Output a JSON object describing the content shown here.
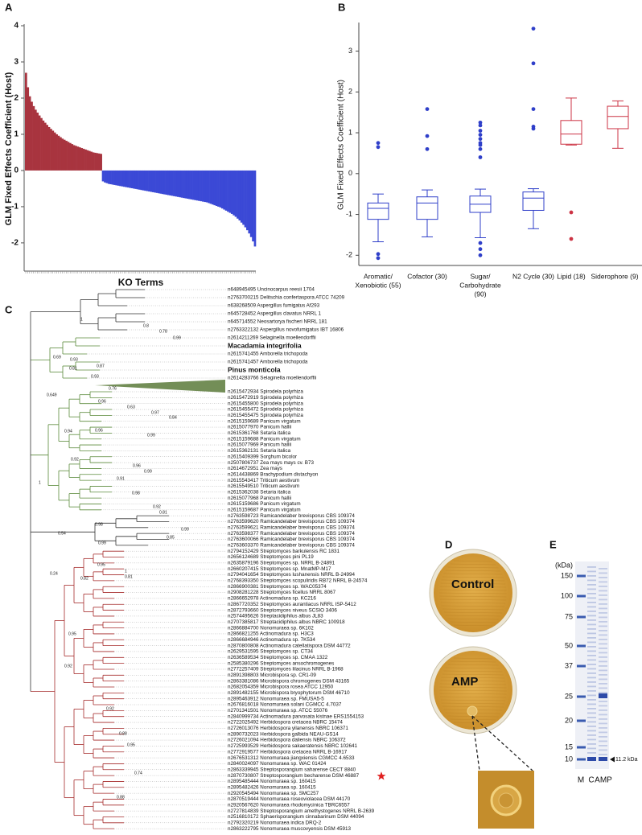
{
  "panel_labels": [
    "A",
    "B",
    "C",
    "D",
    "E"
  ],
  "chart_data": [
    {
      "type": "bar",
      "ylabel": "GLM Fixed Effects Coefficient (Host)",
      "xlabel": "KO Terms",
      "ylim": [
        -2.78,
        4
      ],
      "yticks": [
        -2,
        -1,
        0,
        1,
        2,
        3,
        4
      ],
      "positive_color": "#a8343f",
      "negative_color": "#3b49d6",
      "values": [
        2.7,
        2.3,
        2.05,
        1.9,
        1.78,
        1.68,
        1.6,
        1.52,
        1.45,
        1.38,
        1.32,
        1.26,
        1.2,
        1.15,
        1.1,
        1.05,
        1.0,
        0.96,
        0.92,
        0.88,
        0.85,
        0.82,
        0.79,
        0.76,
        0.73,
        0.7,
        0.68,
        0.66,
        0.64,
        0.62,
        0.6,
        0.58,
        0.56,
        0.54,
        0.52,
        0.5,
        0.49,
        0.48,
        0.47,
        0.46,
        -0.3,
        -0.33,
        -0.35,
        -0.37,
        -0.38,
        -0.39,
        -0.4,
        -0.41,
        -0.42,
        -0.43,
        -0.44,
        -0.45,
        -0.46,
        -0.47,
        -0.48,
        -0.49,
        -0.5,
        -0.51,
        -0.52,
        -0.53,
        -0.54,
        -0.55,
        -0.56,
        -0.57,
        -0.58,
        -0.59,
        -0.6,
        -0.61,
        -0.62,
        -0.63,
        -0.64,
        -0.65,
        -0.66,
        -0.67,
        -0.68,
        -0.69,
        -0.7,
        -0.71,
        -0.72,
        -0.73,
        -0.74,
        -0.75,
        -0.76,
        -0.77,
        -0.78,
        -0.79,
        -0.8,
        -0.81,
        -0.82,
        -0.83,
        -0.84,
        -0.85,
        -0.86,
        -0.87,
        -0.88,
        -0.9,
        -0.92,
        -0.94,
        -0.96,
        -0.98,
        -1.0,
        -1.02,
        -1.05,
        -1.08,
        -1.11,
        -1.14,
        -1.17,
        -1.2,
        -1.24,
        -1.28,
        -1.33,
        -1.38,
        -1.44,
        -1.5,
        -1.57,
        -1.65,
        -1.74,
        -1.84,
        -1.96,
        -2.1
      ]
    },
    {
      "type": "box",
      "ylabel": "GLM Fixed Effects Coefficient (Host)",
      "ylim": [
        -2.25,
        3.7
      ],
      "yticks": [
        -2,
        -1,
        0,
        1,
        2,
        3
      ],
      "categories": [
        [
          "Aromatic/",
          "Xenobiotic (55)"
        ],
        [
          "Cofactor (30)"
        ],
        [
          "Sugar/",
          "Carbohydrate",
          "(90)"
        ],
        [
          "N2 Cycle (30)"
        ],
        [
          "Lipid (18)"
        ],
        [
          "Siderophore (9)"
        ]
      ],
      "colors": [
        "#2f3fc9",
        "#2f3fc9",
        "#2f3fc9",
        "#2f3fc9",
        "#cc3344",
        "#cc3344"
      ],
      "boxes": [
        {
          "whislo": -1.67,
          "q1": -1.12,
          "med": -0.85,
          "q3": -0.72,
          "whishi": -0.5,
          "fliers": [
            0.75,
            0.65,
            -1.97,
            -2.07
          ]
        },
        {
          "whislo": -1.55,
          "q1": -1.12,
          "med": -0.72,
          "q3": -0.57,
          "whishi": -0.4,
          "fliers": [
            1.58,
            0.92,
            0.6
          ]
        },
        {
          "whislo": -1.57,
          "q1": -0.95,
          "med": -0.75,
          "q3": -0.55,
          "whishi": -0.38,
          "fliers": [
            1.25,
            1.18,
            1.05,
            0.95,
            0.85,
            0.75,
            0.7,
            0.6,
            0.4,
            -1.7,
            -1.85,
            -2.0
          ]
        },
        {
          "whislo": -1.35,
          "q1": -0.9,
          "med": -0.6,
          "q3": -0.45,
          "whishi": -0.37,
          "fliers": [
            3.55,
            2.7,
            1.58,
            1.15,
            1.1
          ]
        },
        {
          "whislo": 0.7,
          "q1": 0.72,
          "med": 0.97,
          "q3": 1.3,
          "whishi": 1.85,
          "fliers": [
            -0.95,
            -1.6
          ]
        },
        {
          "whislo": 0.62,
          "q1": 1.1,
          "med": 1.4,
          "q3": 1.65,
          "whishi": 1.78,
          "fliers": []
        }
      ]
    }
  ],
  "tree": {
    "leaves": [
      "n648945495 Uncinocarpus reesii 1704",
      "n2763700215 Delitschia confertaspora ATCC 74209",
      "n638268509 Aspergillus fumigatus Af293",
      "n645728452 Aspergillus clavatus NRRL 1",
      "n645714552 Neosartorya fischeri NRRL 181",
      "n2763322132 Aspergillus novofumigatus IBT 16806",
      "n2614211269 Selaginella moellendorffii",
      "Macadamia integrifolia",
      "n2615741455 Amborella trichopoda",
      "n2615741457 Amborella trichopoda",
      "Pinus monticola",
      "n2614283766 Selaginella moellendorffii",
      "n2615472934 Spirodela polyrhiza",
      "n2615472919 Spirodela polyrhiza",
      "n2615455800 Spirodela polyrhiza",
      "n2615455472 Spirodela polyrhiza",
      "n2615455475 Spirodela polyrhiza",
      "n2615159689 Panicum virgatum",
      "n2615077970 Panicum hallii",
      "n2615361768 Setaria italica",
      "n2615159688 Panicum virgatum",
      "n2615077969 Panicum hallii",
      "n2615362131 Setaria italica",
      "n2615409399 Sorghum bicolor",
      "n2507806737 Zea mays mays cv. B73",
      "n2614672951 Zea mays",
      "n2614438869 Brachypodium distachyon",
      "n2615543417 Triticum aestivum",
      "n2615549510 Triticum aestivum",
      "n2615362038 Setaria italica",
      "n2615077968 Panicum hallii",
      "n2615159686 Panicum virgatum",
      "n2615159687 Panicum virgatum",
      "n2763598723 Ramicandelaber brevisporus CBS 109374",
      "n2763599620 Ramicandelaber brevisporus CBS 109374",
      "n2763599621 Ramicandelaber brevisporus CBS 109374",
      "n2763598377 Ramicandelaber brevisporus CBS 109374",
      "n2763600066 Ramicandelaber brevisporus CBS 109374",
      "n2763603370 Ramicandelaber brevisporus CBS 109374",
      "n2794152429 Streptomyces barkulensis RC 1831",
      "n2656124689 Streptomyces pini PL19",
      "n2635879196 Streptomyces sp. NRRL B-24891",
      "n2660207415 Streptomyces sp. MnatMP-M17",
      "n2794041654 Streptomyces lushanensis NRRL B-24994",
      "n2768393350 Streptomyces scopuliridis RB72 NRRL B-24574",
      "n2866900381 Streptomyces sp. WAC05374",
      "n2908281228 Streptomyces ficellus NRRL 8067",
      "n2866652978 Actinomadura sp. KC216",
      "n2867720352 Streptomyces aurantiacus NRRL ISP-5412",
      "n2872793660 Streptomyces niveus SCSIO 3406",
      "n2574495626 Streptacidiphilus albus JL83",
      "n2707385817 Streptacidiphilus albus NBRC 100918",
      "n2866884700 Nonomuraea sp. 6K102",
      "n2866821255 Actinomadura sp. H3C3",
      "n2866684946 Actinomadura sp. 7K534",
      "n2870800808 Actinomadura catellatispora DSM 44772",
      "n2629531595 Streptomyces sp. CT34",
      "n2636589534 Streptomyces sp. CMAA 1322",
      "n2585380296 Streptomyces ansochromogenes",
      "n2772257409 Streptomyces lilacinus NRRL B-1968",
      "n2891398803 Microbispora sp. CR1-09",
      "n2863381086 Microbispora chromogenes DSM 43165",
      "n2682054359 Microbispora rosea ATCC 12950",
      "n2891482155 Microbispora bryophytorum DSM 46710",
      "n2895463912 Nonomuraea sp. FMUSA5-5",
      "n2676816018 Nonomuraea solani CGMCC 4.7037",
      "n2701341501 Nonomuraea sp. ATCC 55076",
      "n2840999734 Actinomadura parvosata kistnae ERS1554153",
      "n2722025492 Herbidospora cretacea NBRC 15474",
      "n2726013076 Herbidospora yilanensis NBRC 106371",
      "n2890732023 Herbidospora galbida NEAU-GS14",
      "n2726021094 Herbidospora daliensis NBRC 106372",
      "n2725993529 Herbidospora sakaeratensis NBRC 102641",
      "n2772919577 Herbidospora cretacea NRRL B-16917",
      "n2676531312 Nonomuraea jiangxiensis CGMCC 4.6533",
      "n2840024097 Nonomuraea sp. WAC 01424",
      "n2863339945 Streptosporangium saharense CECT 8840",
      "n2870730807 Streptosporangium becharense DSM 46887",
      "n2895485444 Nonomuraea sp. 160415",
      "n2895482426 Nonomuraea sp. 160415",
      "n2920545494 Nonomuraea sp. SMC257",
      "n2870519444 Nonomuraea roseoviolacea DSM 44170",
      "n2920567620 Nonomuraea rhodomycinica TBRC6557",
      "n2727814839 Streptosporangium amethystogenes NRRL B-2639",
      "n2516810172 Sphaerisporangium cinnabarinum DSM 44094",
      "n2792320219 Nonomuraea indica DRQ-2",
      "n2863222795 Nonomuraea muscovyensis DSM 45913"
    ],
    "support": [
      1,
      0.8,
      0.78,
      0.99,
      0.69,
      0.93,
      0.81,
      0.87,
      0.93,
      0.76,
      0.649,
      0.96,
      0.63,
      0.97,
      0.84,
      0.94,
      0.96,
      0.99,
      0.92,
      0.96,
      0.99,
      0.91,
      0.98,
      0.92,
      0.81,
      1,
      0.54,
      0.98,
      0.99,
      0.85,
      0.99,
      0.24,
      0.95,
      0.82,
      1,
      0.81,
      0.95,
      0.92,
      0.92,
      0.88,
      0.95,
      0.74,
      0.88
    ]
  },
  "plates": {
    "labels": [
      "Control",
      "AMP"
    ]
  },
  "gel": {
    "unit_label": "(kDa)",
    "markers": [
      150,
      100,
      75,
      50,
      37,
      25,
      20,
      15,
      10
    ],
    "lanes": [
      "M",
      "C",
      "AMP"
    ],
    "annotation": "11.2 kDa"
  }
}
